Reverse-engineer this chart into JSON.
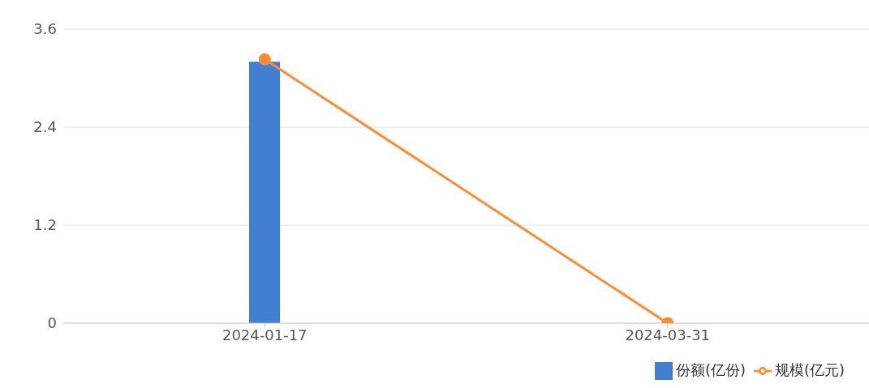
{
  "chart_data": {
    "type": "bar",
    "categories": [
      "2024-01-17",
      "2024-03-31"
    ],
    "series": [
      {
        "name": "份额(亿份)",
        "color": "#4180d0",
        "values": [
          3.2,
          null
        ]
      },
      {
        "name": "规模(亿元)",
        "type": "line",
        "color": "#ff8c33",
        "values": [
          3.23,
          0
        ]
      }
    ],
    "ylim": [
      0,
      3.6
    ],
    "yticks": [
      0,
      1.2,
      2.4,
      3.6
    ],
    "grid": "y",
    "legend": "bottom right",
    "marker": "circle"
  }
}
